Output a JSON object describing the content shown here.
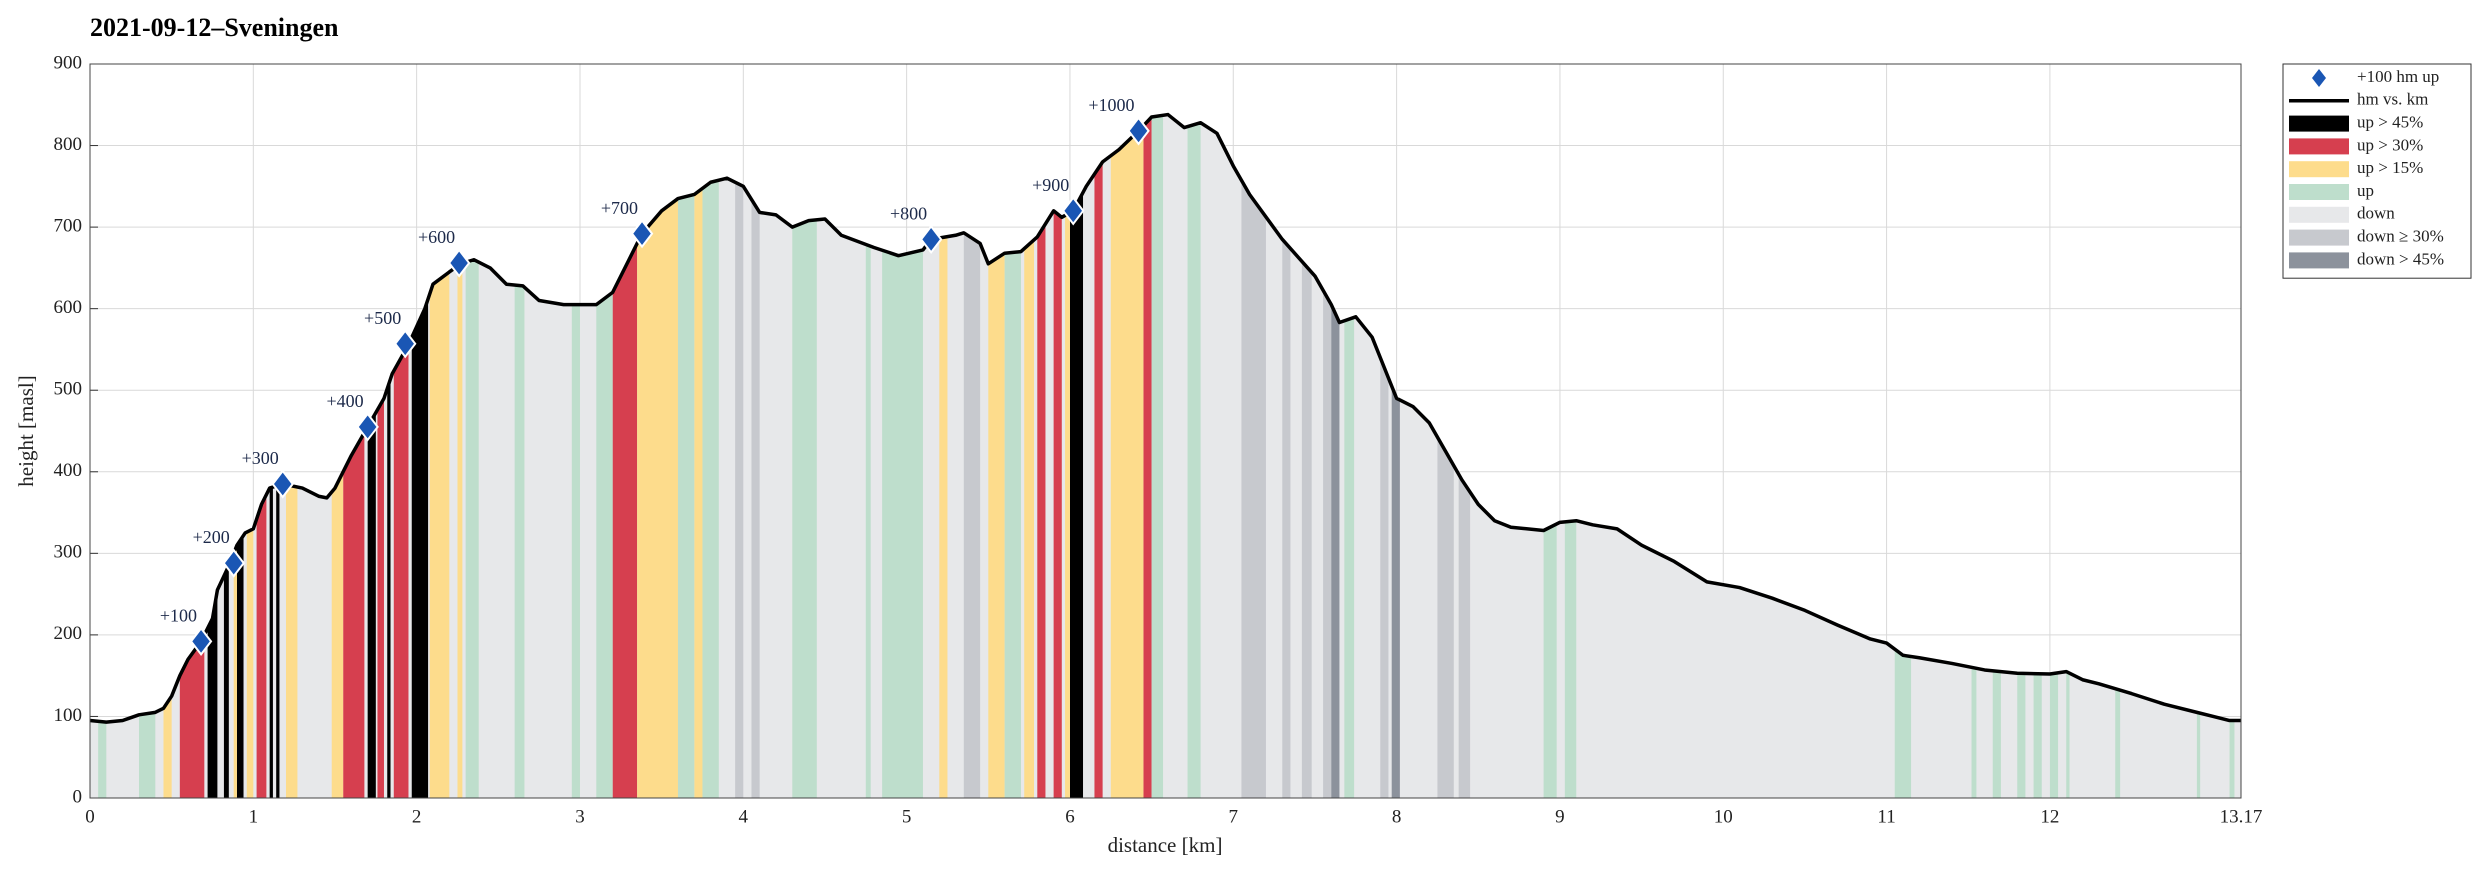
{
  "chart_data": {
    "type": "area",
    "title": "2021-09-12–Sveningen",
    "xlabel": "distance [km]",
    "ylabel": "height [masl]",
    "xlim": [
      0,
      13.17
    ],
    "ylim": [
      0,
      900
    ],
    "xticks": [
      0,
      1,
      2,
      3,
      4,
      5,
      6,
      7,
      8,
      9,
      10,
      11,
      12,
      13.17
    ],
    "yticks": [
      0,
      100,
      200,
      300,
      400,
      500,
      600,
      700,
      800,
      900
    ],
    "grid": true,
    "legend": "outside-right",
    "milestones": {
      "name": "+100 hm up",
      "color": "#1a56b4",
      "x": [
        0.68,
        0.88,
        1.18,
        1.7,
        1.93,
        2.26,
        3.38,
        5.15,
        6.02,
        6.42
      ],
      "values": [
        192,
        288,
        385,
        455,
        557,
        656,
        692,
        685,
        720,
        818
      ],
      "labels": [
        "+100",
        "+200",
        "+300",
        "+400",
        "+500",
        "+600",
        "+700",
        "+800",
        "+900",
        "+1000"
      ]
    },
    "profile": {
      "name": "hm vs. km",
      "color": "#000000",
      "x": [
        0,
        0.1,
        0.2,
        0.3,
        0.4,
        0.45,
        0.5,
        0.55,
        0.6,
        0.68,
        0.75,
        0.78,
        0.85,
        0.9,
        0.95,
        1.0,
        1.05,
        1.1,
        1.18,
        1.3,
        1.4,
        1.45,
        1.5,
        1.6,
        1.7,
        1.8,
        1.85,
        1.95,
        2.05,
        2.1,
        2.2,
        2.27,
        2.35,
        2.45,
        2.55,
        2.65,
        2.75,
        2.9,
        3.0,
        3.1,
        3.2,
        3.3,
        3.38,
        3.5,
        3.6,
        3.7,
        3.8,
        3.9,
        4.0,
        4.1,
        4.2,
        4.3,
        4.4,
        4.5,
        4.6,
        4.8,
        4.95,
        5.1,
        5.15,
        5.3,
        5.35,
        5.45,
        5.5,
        5.6,
        5.7,
        5.8,
        5.9,
        5.95,
        6.02,
        6.1,
        6.2,
        6.3,
        6.42,
        6.5,
        6.6,
        6.7,
        6.8,
        6.9,
        7.0,
        7.1,
        7.3,
        7.5,
        7.6,
        7.65,
        7.75,
        7.85,
        7.95,
        8.0,
        8.1,
        8.2,
        8.3,
        8.4,
        8.5,
        8.6,
        8.7,
        8.9,
        9.0,
        9.1,
        9.2,
        9.35,
        9.5,
        9.7,
        9.9,
        10.1,
        10.3,
        10.5,
        10.7,
        10.9,
        11.0,
        11.1,
        11.2,
        11.4,
        11.6,
        11.8,
        12.0,
        12.1,
        12.2,
        12.3,
        12.5,
        12.7,
        12.9,
        13.0,
        13.1,
        13.17
      ],
      "values": [
        95,
        93,
        95,
        102,
        105,
        110,
        125,
        150,
        170,
        192,
        220,
        255,
        285,
        310,
        325,
        330,
        360,
        380,
        385,
        380,
        370,
        368,
        380,
        420,
        455,
        490,
        520,
        556,
        600,
        630,
        645,
        655,
        660,
        650,
        630,
        628,
        610,
        605,
        605,
        605,
        620,
        660,
        692,
        720,
        735,
        740,
        755,
        760,
        750,
        718,
        715,
        700,
        708,
        710,
        690,
        675,
        665,
        672,
        685,
        690,
        693,
        680,
        655,
        668,
        670,
        688,
        720,
        712,
        720,
        750,
        780,
        795,
        818,
        835,
        838,
        822,
        828,
        815,
        775,
        740,
        685,
        640,
        605,
        583,
        590,
        565,
        515,
        490,
        480,
        460,
        425,
        390,
        360,
        340,
        332,
        328,
        338,
        340,
        335,
        330,
        310,
        290,
        265,
        258,
        245,
        230,
        212,
        195,
        190,
        175,
        172,
        165,
        157,
        153,
        152,
        155,
        145,
        140,
        128,
        115,
        105,
        100,
        95,
        95
      ]
    },
    "bands": [
      {
        "name": "up > 45%",
        "color": "#000000",
        "intervals": [
          [
            0.72,
            0.78
          ],
          [
            0.82,
            0.85
          ],
          [
            0.9,
            0.94
          ],
          [
            1.1,
            1.12
          ],
          [
            1.14,
            1.16
          ],
          [
            1.7,
            1.75
          ],
          [
            1.82,
            1.84
          ],
          [
            1.97,
            2.07
          ],
          [
            6.0,
            6.08
          ]
        ]
      },
      {
        "name": "up > 30%",
        "color": "#d63f4f",
        "intervals": [
          [
            0.55,
            0.7
          ],
          [
            1.02,
            1.08
          ],
          [
            1.55,
            1.68
          ],
          [
            1.76,
            1.8
          ],
          [
            1.86,
            1.95
          ],
          [
            3.2,
            3.35
          ],
          [
            5.8,
            5.85
          ],
          [
            5.9,
            5.95
          ],
          [
            6.15,
            6.2
          ],
          [
            6.45,
            6.5
          ]
        ]
      },
      {
        "name": "up > 15%",
        "color": "#fddc8c",
        "intervals": [
          [
            0.45,
            0.5
          ],
          [
            0.88,
            0.9
          ],
          [
            0.96,
            1.0
          ],
          [
            1.2,
            1.27
          ],
          [
            1.48,
            1.55
          ],
          [
            2.08,
            2.2
          ],
          [
            2.25,
            2.28
          ],
          [
            3.35,
            3.6
          ],
          [
            3.7,
            3.75
          ],
          [
            5.2,
            5.25
          ],
          [
            5.5,
            5.6
          ],
          [
            5.72,
            5.78
          ],
          [
            5.97,
            6.0
          ],
          [
            6.25,
            6.45
          ]
        ]
      },
      {
        "name": "up",
        "color": "#bedecc",
        "intervals": [
          [
            0.05,
            0.1
          ],
          [
            0.3,
            0.4
          ],
          [
            2.3,
            2.38
          ],
          [
            2.6,
            2.66
          ],
          [
            2.95,
            3.0
          ],
          [
            3.1,
            3.2
          ],
          [
            3.6,
            3.7
          ],
          [
            3.75,
            3.85
          ],
          [
            4.3,
            4.45
          ],
          [
            4.75,
            4.78
          ],
          [
            4.85,
            5.1
          ],
          [
            5.6,
            5.7
          ],
          [
            6.5,
            6.57
          ],
          [
            6.72,
            6.8
          ],
          [
            7.68,
            7.74
          ],
          [
            8.9,
            8.98
          ],
          [
            9.03,
            9.1
          ],
          [
            11.05,
            11.15
          ],
          [
            11.52,
            11.55
          ],
          [
            11.65,
            11.7
          ],
          [
            11.8,
            11.85
          ],
          [
            11.9,
            11.95
          ],
          [
            12.0,
            12.05
          ],
          [
            12.1,
            12.12
          ],
          [
            12.4,
            12.43
          ],
          [
            12.9,
            12.92
          ],
          [
            13.1,
            13.13
          ]
        ]
      },
      {
        "name": "down",
        "color": "#e7e8ea",
        "intervals": []
      },
      {
        "name": "down ≥ 30%",
        "color": "#c7c9ce",
        "intervals": [
          [
            3.95,
            4.0
          ],
          [
            4.05,
            4.1
          ],
          [
            5.35,
            5.45
          ],
          [
            7.05,
            7.2
          ],
          [
            7.3,
            7.35
          ],
          [
            7.42,
            7.48
          ],
          [
            7.55,
            7.6
          ],
          [
            7.9,
            7.95
          ],
          [
            8.25,
            8.35
          ],
          [
            8.38,
            8.45
          ]
        ]
      },
      {
        "name": "down > 45%",
        "color": "#8c929c",
        "intervals": [
          [
            7.6,
            7.65
          ],
          [
            7.97,
            8.02
          ]
        ]
      }
    ]
  }
}
